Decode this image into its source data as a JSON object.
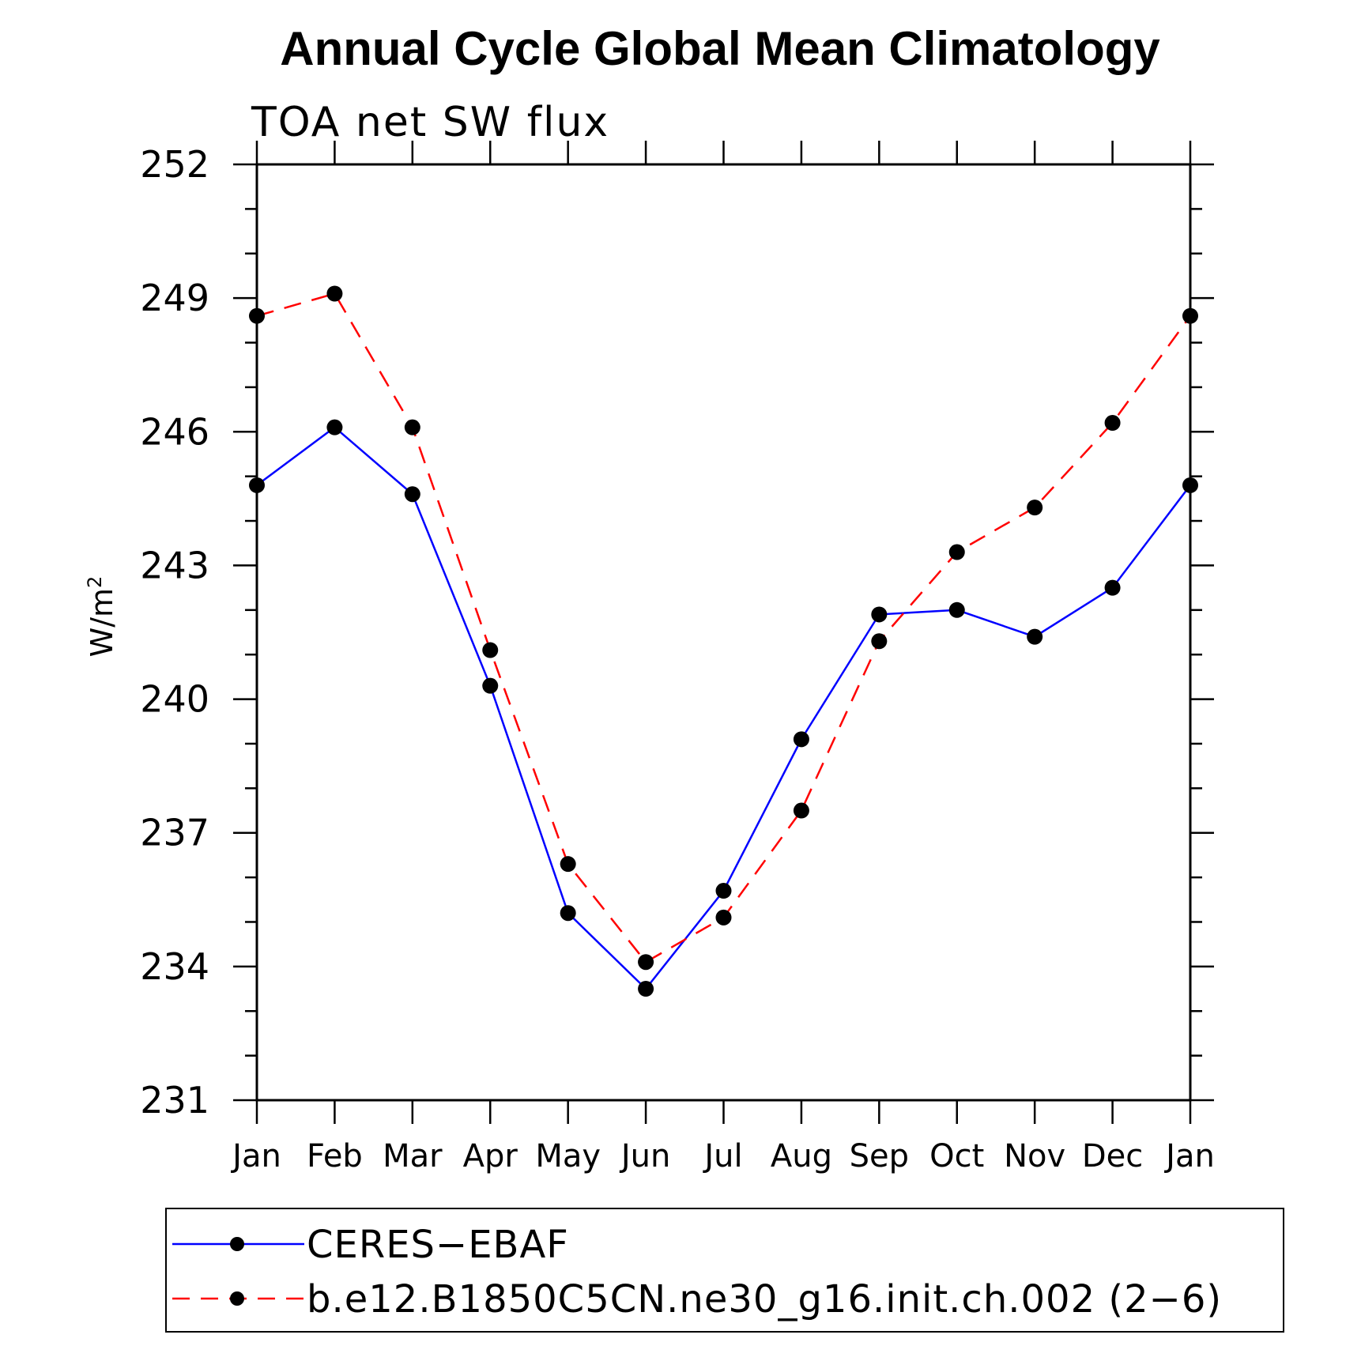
{
  "chart_data": {
    "type": "line",
    "title": "Annual Cycle Global Mean Climatology",
    "subtitle": "TOA net SW flux",
    "ylabel": "W/m",
    "ylabel_superscript": "2",
    "xlabel": "",
    "categories": [
      "Jan",
      "Feb",
      "Mar",
      "Apr",
      "May",
      "Jun",
      "Jul",
      "Aug",
      "Sep",
      "Oct",
      "Nov",
      "Dec",
      "Jan"
    ],
    "ylim": [
      231,
      252
    ],
    "yticks": [
      231,
      234,
      237,
      240,
      243,
      246,
      249,
      252
    ],
    "series": [
      {
        "name": "CERES−EBAF",
        "color": "#0000ff",
        "dash": "solid",
        "marker": "filled-circle",
        "values": [
          244.8,
          246.1,
          244.6,
          240.3,
          235.2,
          233.5,
          235.7,
          239.1,
          241.9,
          242.0,
          241.4,
          242.5,
          244.8
        ]
      },
      {
        "name": "b.e12.B1850C5CN.ne30_g16.init.ch.002 (2−6)",
        "color": "#ff0000",
        "dash": "dashed",
        "marker": "filled-circle",
        "values": [
          248.6,
          249.1,
          246.1,
          241.1,
          236.3,
          234.1,
          235.1,
          237.5,
          241.3,
          243.3,
          244.3,
          246.2,
          248.6
        ]
      }
    ],
    "grid": false,
    "legend_position": "bottom"
  }
}
